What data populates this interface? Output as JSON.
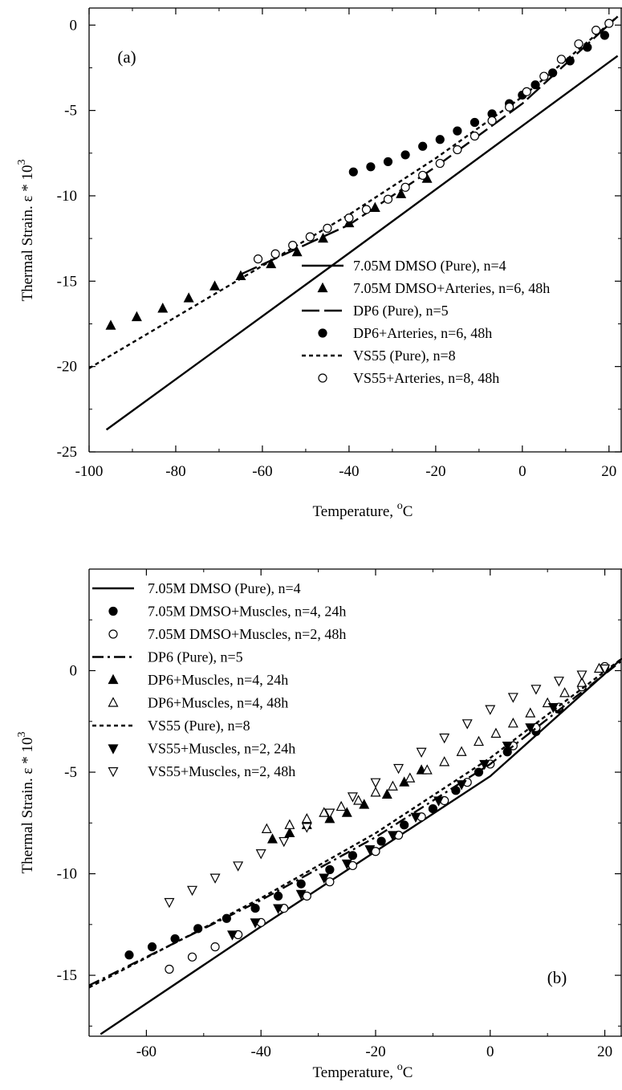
{
  "chart_data": [
    {
      "type": "line",
      "panel_label": "(a)",
      "xlabel": "Temperature, ",
      "xlabel_sup": "o",
      "xlabel_unit": "C",
      "ylabel": "Thermal Strain. ε * 10",
      "ylabel_sup": "3",
      "xlim": [
        -100,
        23
      ],
      "ylim": [
        -25,
        1
      ],
      "xticks": [
        -100,
        -80,
        -60,
        -40,
        -20,
        0,
        20
      ],
      "yticks": [
        -25,
        -20,
        -15,
        -10,
        -5,
        0
      ],
      "grid": false,
      "legend_position": "bottom-right",
      "series": [
        {
          "name": "7.05M DMSO (Pure), n=4",
          "kind": "line",
          "dash": "solid",
          "x": [
            -96,
            -40,
            0,
            22
          ],
          "y": [
            -23.7,
            -13.36,
            -5.9,
            -1.8
          ]
        },
        {
          "name": "7.05M DMSO+Arteries, n=6, 48h",
          "kind": "marker",
          "marker": "triangle-up",
          "filled": true,
          "x": [
            -95,
            -89,
            -83,
            -77,
            -71,
            -65,
            -58,
            -52,
            -46,
            -40,
            -34,
            -28,
            -22
          ],
          "y": [
            -17.6,
            -17.1,
            -16.6,
            -16.0,
            -15.3,
            -14.7,
            -14.0,
            -13.3,
            -12.5,
            -11.6,
            -10.7,
            -9.9,
            -9.0
          ]
        },
        {
          "name": "DP6 (Pure), n=5",
          "kind": "line",
          "dash": "longdash",
          "x": [
            -65,
            -40,
            -20,
            0,
            22
          ],
          "y": [
            -14.6,
            -11.7,
            -8.3,
            -4.6,
            0.5
          ]
        },
        {
          "name": "DP6+Arteries, n=6, 48h",
          "kind": "marker",
          "marker": "circle",
          "filled": true,
          "x": [
            -39,
            -35,
            -31,
            -27,
            -23,
            -19,
            -15,
            -11,
            -7,
            -3,
            0,
            3,
            7,
            11,
            15,
            19
          ],
          "y": [
            -8.6,
            -8.3,
            -8.0,
            -7.6,
            -7.1,
            -6.7,
            -6.2,
            -5.7,
            -5.2,
            -4.6,
            -4.1,
            -3.5,
            -2.8,
            -2.1,
            -1.3,
            -0.6
          ]
        },
        {
          "name": "VS55 (Pure), n=8",
          "kind": "line",
          "dash": "shortdash",
          "x": [
            -100,
            -80,
            -60,
            -40,
            -20,
            0,
            22
          ],
          "y": [
            -20.1,
            -17.1,
            -14.1,
            -11.1,
            -7.8,
            -4.2,
            0.5
          ]
        },
        {
          "name": "VS55+Arteries, n=8, 48h",
          "kind": "marker",
          "marker": "circle",
          "filled": false,
          "x": [
            -61,
            -57,
            -53,
            -49,
            -45,
            -40,
            -36,
            -31,
            -27,
            -23,
            -19,
            -15,
            -11,
            -7,
            -3,
            1,
            5,
            9,
            13,
            17,
            20
          ],
          "y": [
            -13.7,
            -13.4,
            -12.9,
            -12.4,
            -11.9,
            -11.3,
            -10.8,
            -10.2,
            -9.5,
            -8.8,
            -8.1,
            -7.3,
            -6.5,
            -5.6,
            -4.8,
            -3.9,
            -3.0,
            -2.0,
            -1.1,
            -0.3,
            0.1
          ]
        }
      ]
    },
    {
      "type": "line",
      "panel_label": "(b)",
      "xlabel": "Temperature, ",
      "xlabel_sup": "o",
      "xlabel_unit": "C",
      "ylabel": "Thermal Strain. ε * 10",
      "ylabel_sup": "3",
      "xlim": [
        -70,
        23
      ],
      "ylim": [
        -18,
        5
      ],
      "xticks": [
        -60,
        -40,
        -20,
        0,
        20
      ],
      "yticks": [
        -15,
        -10,
        -5,
        0
      ],
      "grid": false,
      "legend_position": "top-left",
      "series": [
        {
          "name": "7.05M DMSO (Pure), n=4",
          "kind": "line",
          "dash": "solid",
          "x": [
            -68,
            -40,
            0,
            23
          ],
          "y": [
            -17.9,
            -12.6,
            -5.2,
            0.6
          ]
        },
        {
          "name": "7.05M DMSO+Muscles, n=4, 24h",
          "kind": "marker",
          "marker": "circle",
          "filled": true,
          "x": [
            -63,
            -59,
            -55,
            -51,
            -46,
            -41,
            -37,
            -33,
            -28,
            -24,
            -19,
            -15,
            -10,
            -6,
            -2,
            3,
            8,
            12
          ],
          "y": [
            -14.0,
            -13.6,
            -13.2,
            -12.7,
            -12.2,
            -11.7,
            -11.1,
            -10.5,
            -9.8,
            -9.1,
            -8.4,
            -7.6,
            -6.8,
            -5.9,
            -5.0,
            -4.0,
            -3.0,
            -1.9
          ]
        },
        {
          "name": "7.05M DMSO+Muscles, n=2, 48h",
          "kind": "marker",
          "marker": "circle",
          "filled": false,
          "x": [
            -56,
            -52,
            -48,
            -44,
            -40,
            -36,
            -32,
            -28,
            -24,
            -20,
            -16,
            -12,
            -8,
            -4,
            0,
            4,
            8,
            12,
            16,
            20
          ],
          "y": [
            -14.7,
            -14.1,
            -13.6,
            -13.0,
            -12.4,
            -11.7,
            -11.1,
            -10.4,
            -9.6,
            -8.9,
            -8.1,
            -7.2,
            -6.4,
            -5.5,
            -4.6,
            -3.7,
            -2.8,
            -1.8,
            -0.8,
            0.2
          ]
        },
        {
          "name": "DP6 (Pure), n=5",
          "kind": "line",
          "dash": "dashdot",
          "x": [
            -70,
            -40,
            -20,
            0,
            23
          ],
          "y": [
            -15.5,
            -11.3,
            -8.2,
            -4.6,
            0.5
          ]
        },
        {
          "name": "DP6+Muscles, n=4, 24h",
          "kind": "marker",
          "marker": "triangle-up",
          "filled": true,
          "x": [
            -38,
            -35,
            -32,
            -28,
            -25,
            -22,
            -18,
            -15,
            -12
          ],
          "y": [
            -8.3,
            -8.0,
            -7.6,
            -7.3,
            -7.0,
            -6.6,
            -6.1,
            -5.5,
            -4.9
          ]
        },
        {
          "name": "DP6+Muscles, n=4, 48h",
          "kind": "marker",
          "marker": "triangle-up",
          "filled": false,
          "x": [
            -39,
            -35,
            -32,
            -29,
            -26,
            -23,
            -20,
            -17,
            -14,
            -11,
            -8,
            -5,
            -2,
            1,
            4,
            7,
            10,
            13,
            16,
            19
          ],
          "y": [
            -7.8,
            -7.6,
            -7.3,
            -7.0,
            -6.7,
            -6.4,
            -6.0,
            -5.7,
            -5.3,
            -4.9,
            -4.5,
            -4.0,
            -3.5,
            -3.1,
            -2.6,
            -2.1,
            -1.6,
            -1.1,
            -0.6,
            0.1
          ]
        },
        {
          "name": "VS55 (Pure), n=8",
          "kind": "line",
          "dash": "shortdash",
          "x": [
            -70,
            -40,
            -20,
            0,
            23
          ],
          "y": [
            -15.6,
            -11.2,
            -8.0,
            -4.3,
            0.6
          ]
        },
        {
          "name": "VS55+Muscles, n=2, 24h",
          "kind": "marker",
          "marker": "triangle-down",
          "filled": true,
          "x": [
            -45,
            -41,
            -37,
            -33,
            -29,
            -25,
            -21,
            -17,
            -13,
            -9,
            -5,
            -1,
            3,
            7,
            11
          ],
          "y": [
            -13.0,
            -12.4,
            -11.7,
            -11.0,
            -10.2,
            -9.5,
            -8.8,
            -8.1,
            -7.2,
            -6.4,
            -5.6,
            -4.6,
            -3.7,
            -2.8,
            -1.8
          ]
        },
        {
          "name": "VS55+Muscles, n=2, 48h",
          "kind": "marker",
          "marker": "triangle-down",
          "filled": false,
          "x": [
            -56,
            -52,
            -48,
            -44,
            -40,
            -36,
            -32,
            -28,
            -24,
            -20,
            -16,
            -12,
            -8,
            -4,
            0,
            4,
            8,
            12,
            16,
            20
          ],
          "y": [
            -11.4,
            -10.8,
            -10.2,
            -9.6,
            -9.0,
            -8.4,
            -7.7,
            -7.0,
            -6.2,
            -5.5,
            -4.8,
            -4.0,
            -3.3,
            -2.6,
            -1.9,
            -1.3,
            -0.9,
            -0.5,
            -0.2,
            0.1
          ]
        }
      ]
    }
  ]
}
